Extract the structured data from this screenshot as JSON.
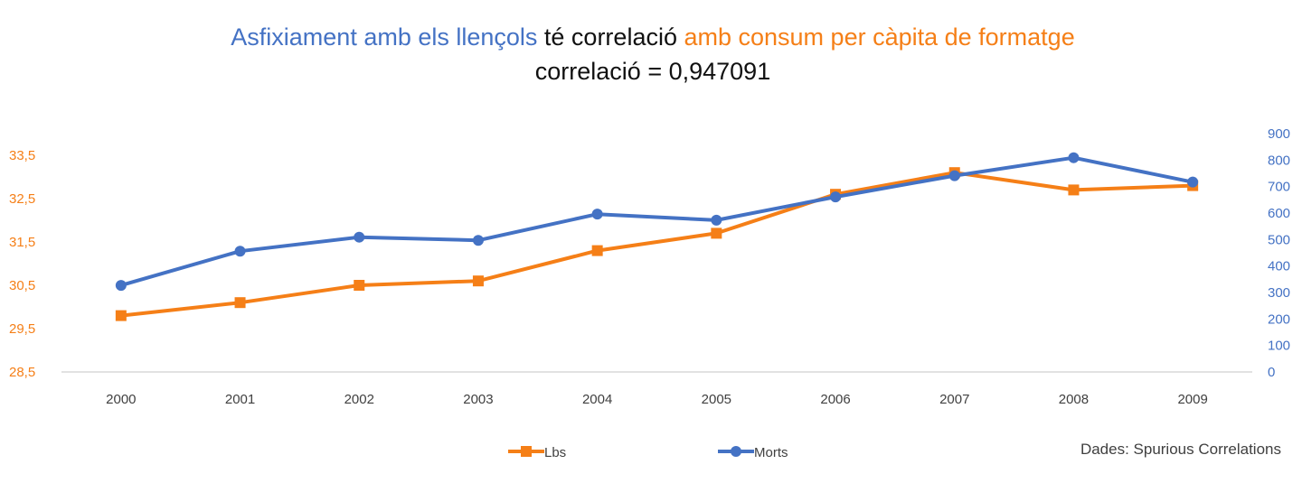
{
  "title": {
    "part1": "Asfixiament amb els llençols",
    "part2": " té correlació ",
    "part3": "amb consum per càpita de formatge",
    "subtitle": "correlació = 0,947091"
  },
  "source_note": "Dades: Spurious Correlations",
  "colors": {
    "lbs": "#F57F17",
    "morts": "#4472C4",
    "text": "#111111",
    "axis": "#D9D9D9"
  },
  "chart_data": {
    "type": "line",
    "categories": [
      "2000",
      "2001",
      "2002",
      "2003",
      "2004",
      "2005",
      "2006",
      "2007",
      "2008",
      "2009"
    ],
    "series": [
      {
        "name": "Lbs",
        "axis": "left",
        "marker": "square",
        "values": [
          29.8,
          30.1,
          30.5,
          30.6,
          31.3,
          31.7,
          32.6,
          33.1,
          32.7,
          32.8
        ]
      },
      {
        "name": "Morts",
        "axis": "right",
        "marker": "circle",
        "values": [
          327,
          456,
          509,
          497,
          596,
          573,
          661,
          741,
          809,
          717
        ]
      }
    ],
    "y_left": {
      "min": 28.5,
      "max": 33.5,
      "ticks": [
        "28,5",
        "29,5",
        "30,5",
        "31,5",
        "32,5",
        "33,5"
      ]
    },
    "y_right": {
      "min": 0,
      "max": 900,
      "ticks": [
        "0",
        "100",
        "200",
        "300",
        "400",
        "500",
        "600",
        "700",
        "800",
        "900"
      ]
    },
    "grid": false,
    "legend": "bottom"
  }
}
